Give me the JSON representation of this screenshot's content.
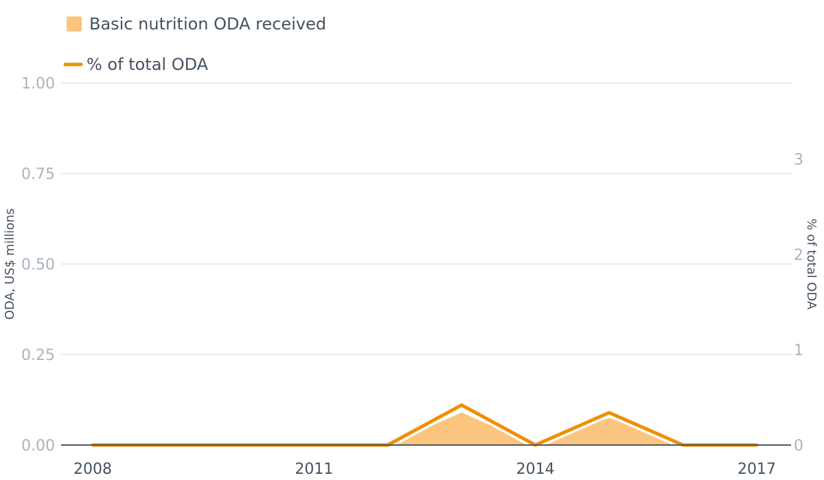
{
  "chart_data": {
    "type": "area",
    "x": [
      2008,
      2009,
      2010,
      2011,
      2012,
      2013,
      2014,
      2015,
      2016,
      2017
    ],
    "x_ticks": [
      2008,
      2011,
      2014,
      2017
    ],
    "series": [
      {
        "name": "Basic nutrition ODA received",
        "type": "area",
        "axis": "left",
        "values": [
          0,
          0,
          0,
          0,
          0,
          0.09,
          0,
          0.075,
          0,
          0
        ],
        "color": "#fbc57f"
      },
      {
        "name": "% of total ODA",
        "type": "line",
        "axis": "right",
        "values": [
          0,
          0,
          0,
          0,
          0,
          0.42,
          0,
          0.34,
          0,
          0
        ],
        "color": "#ef8f05"
      }
    ],
    "left_axis": {
      "label": "ODA, US$ millions",
      "range": [
        0,
        1
      ],
      "ticks": [
        "0.00",
        "0.25",
        "0.50",
        "0.75",
        "1.00"
      ]
    },
    "right_axis": {
      "label": "% of total ODA",
      "range": [
        0,
        3.8
      ],
      "ticks": [
        "0",
        "1",
        "2",
        "3"
      ]
    },
    "grid": true,
    "legend_position": "top-left"
  }
}
